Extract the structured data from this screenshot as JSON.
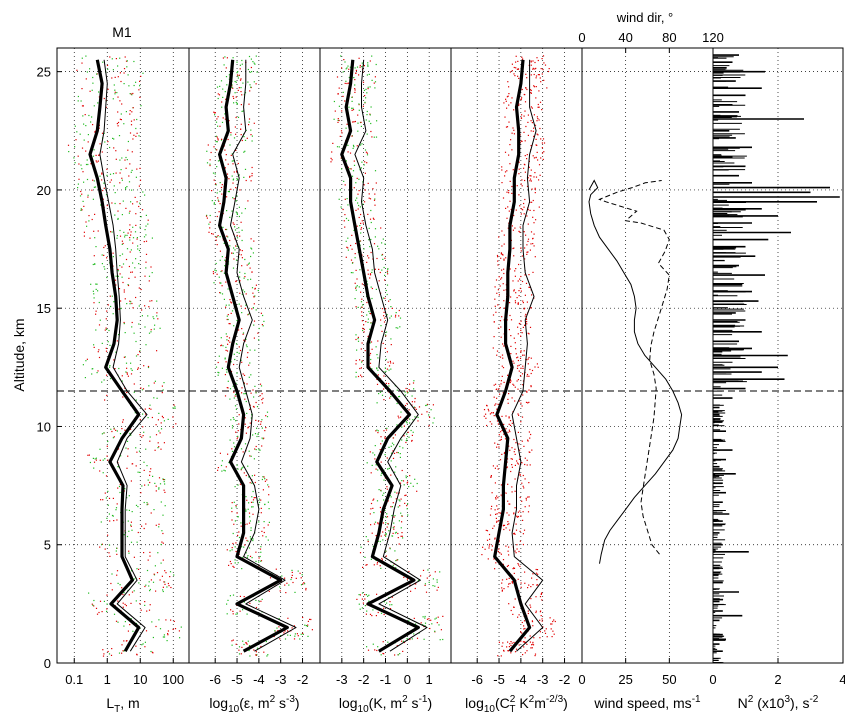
{
  "figure": {
    "title": "M1",
    "ylabel": "Altitude, km",
    "top_axis_label": "wind dir, °",
    "y_ticks": [
      0,
      5,
      10,
      15,
      20,
      25
    ],
    "tropopause_km": 11.5
  },
  "chart_data": [
    {
      "type": "line",
      "panel": "LT",
      "xlabel_parts": [
        "L",
        "T",
        ", m"
      ],
      "xscale": "log",
      "xlim": [
        0.03,
        300
      ],
      "xticks": [
        0.1,
        1,
        10,
        100
      ],
      "xticklabels": [
        "0.1",
        "1",
        "10",
        "100"
      ],
      "y": [
        0.5,
        1.5,
        2.5,
        3.5,
        4.5,
        5.5,
        6.5,
        7.5,
        8.5,
        9.5,
        10.5,
        11.5,
        12.5,
        13.5,
        14.5,
        15.5,
        16.5,
        17.5,
        18.5,
        19.5,
        20.5,
        21.5,
        22.5,
        23.5,
        24.5,
        25.5
      ],
      "series": [
        {
          "style": "thick",
          "values": [
            3.5,
            9,
            1.3,
            5.8,
            2.8,
            2.8,
            2.8,
            3.0,
            1.2,
            2.8,
            9,
            2.8,
            0.9,
            1.6,
            2.0,
            1.8,
            1.4,
            1.2,
            0.9,
            0.7,
            0.5,
            0.3,
            0.5,
            0.6,
            0.7,
            0.5
          ]
        },
        {
          "style": "thin",
          "values": [
            5,
            14,
            2,
            8,
            3.5,
            3.5,
            3.5,
            4,
            2,
            4,
            16,
            4,
            1.5,
            2.2,
            2.5,
            2.3,
            2.0,
            1.8,
            1.5,
            1.1,
            0.8,
            0.6,
            0.8,
            0.9,
            1.0,
            0.8
          ]
        }
      ]
    },
    {
      "type": "line",
      "panel": "epsilon",
      "xlabel_parts": [
        "log",
        "10",
        "(ε, m",
        "2",
        " s",
        "-3",
        ")"
      ],
      "xlim": [
        -7.2,
        -1.2
      ],
      "xticks": [
        -6,
        -5,
        -4,
        -3,
        -2
      ],
      "y": [
        0.5,
        1.5,
        2.5,
        3.5,
        4.5,
        5.5,
        6.5,
        7.5,
        8.5,
        9.5,
        10.5,
        11.5,
        12.5,
        13.5,
        14.5,
        15.5,
        16.5,
        17.5,
        18.5,
        19.5,
        20.5,
        21.5,
        22.5,
        23.5,
        24.5,
        25.5
      ],
      "series": [
        {
          "style": "thick",
          "values": [
            -4.7,
            -2.7,
            -5.0,
            -3.0,
            -5.0,
            -4.7,
            -4.7,
            -4.7,
            -5.3,
            -4.8,
            -4.7,
            -5.0,
            -5.4,
            -5.2,
            -4.9,
            -5.2,
            -5.5,
            -5.4,
            -5.8,
            -5.6,
            -5.5,
            -5.8,
            -5.4,
            -5.5,
            -5.3,
            -5.2
          ]
        },
        {
          "style": "thin",
          "values": [
            -4.2,
            -2.3,
            -4.6,
            -2.8,
            -4.7,
            -4.2,
            -4.0,
            -4.2,
            -4.8,
            -4.4,
            -4.3,
            -4.6,
            -4.9,
            -4.7,
            -4.3,
            -4.7,
            -5.0,
            -4.9,
            -5.3,
            -5.1,
            -4.9,
            -5.2,
            -4.6,
            -4.7,
            -4.6,
            -4.6
          ]
        }
      ]
    },
    {
      "type": "line",
      "panel": "K",
      "xlabel_parts": [
        "log",
        "10",
        "(K, m",
        "2",
        " s",
        "-1",
        ")"
      ],
      "xlim": [
        -4.0,
        2.0
      ],
      "xticks": [
        -3,
        -2,
        -1,
        0,
        1
      ],
      "y": [
        0.5,
        1.5,
        2.5,
        3.5,
        4.5,
        5.5,
        6.5,
        7.5,
        8.5,
        9.5,
        10.5,
        11.5,
        12.5,
        13.5,
        14.5,
        15.5,
        16.5,
        17.5,
        18.5,
        19.5,
        20.5,
        21.5,
        22.5,
        23.5,
        24.5,
        25.5
      ],
      "series": [
        {
          "style": "thick",
          "values": [
            -1.3,
            0.5,
            -1.8,
            0.3,
            -1.6,
            -1.3,
            -1.1,
            -0.7,
            -1.4,
            -0.9,
            0.1,
            -0.8,
            -1.8,
            -1.8,
            -1.5,
            -1.8,
            -2.0,
            -2.2,
            -2.4,
            -2.6,
            -2.6,
            -3.0,
            -2.6,
            -2.8,
            -2.6,
            -2.5
          ]
        },
        {
          "style": "thin",
          "values": [
            -0.8,
            0.9,
            -1.3,
            0.6,
            -1.1,
            -0.8,
            -0.6,
            -0.3,
            -0.9,
            -0.3,
            0.5,
            -0.3,
            -1.3,
            -1.2,
            -0.9,
            -1.2,
            -1.5,
            -1.6,
            -1.9,
            -2.1,
            -2.0,
            -2.4,
            -1.9,
            -2.1,
            -2.1,
            -2.0
          ]
        }
      ]
    },
    {
      "type": "line",
      "panel": "CT2",
      "xlabel_parts": [
        "log",
        "10",
        "(C",
        "2",
        "T",
        " K",
        "2",
        "m",
        "-2/3",
        ")"
      ],
      "xlim": [
        -7.2,
        -1.2
      ],
      "xticks": [
        -6,
        -5,
        -4,
        -3,
        -2
      ],
      "y": [
        0.5,
        1.5,
        2.5,
        3.5,
        4.5,
        5.5,
        6.5,
        7.5,
        8.5,
        9.5,
        10.5,
        11.5,
        12.5,
        13.5,
        14.5,
        15.5,
        16.5,
        17.5,
        18.5,
        19.5,
        20.5,
        21.5,
        22.5,
        23.5,
        24.5,
        25.5
      ],
      "series": [
        {
          "style": "thick",
          "values": [
            -4.5,
            -3.6,
            -4.0,
            -4.3,
            -5.2,
            -5.0,
            -4.8,
            -4.8,
            -4.7,
            -4.6,
            -5.1,
            -4.7,
            -4.4,
            -4.7,
            -4.7,
            -4.6,
            -4.6,
            -4.5,
            -4.5,
            -4.3,
            -4.3,
            -4.1,
            -4.1,
            -4.2,
            -4.0,
            -3.9
          ]
        },
        {
          "style": "thin",
          "values": [
            -4.2,
            -3.0,
            -3.8,
            -3.0,
            -4.3,
            -4.4,
            -4.2,
            -4.2,
            -4.0,
            -4.2,
            -4.4,
            -3.9,
            -3.8,
            -3.7,
            -3.8,
            -3.4,
            -3.8,
            -3.9,
            -3.9,
            -3.6,
            -3.7,
            -3.6,
            -3.3,
            -3.6,
            -3.6,
            -3.6
          ]
        }
      ]
    },
    {
      "type": "line",
      "panel": "wind",
      "xlabel_parts": [
        "wind speed, ms",
        "-1"
      ],
      "xlim": [
        0,
        75
      ],
      "xticks": [
        0,
        25,
        50
      ],
      "top_xlim": [
        0,
        120
      ],
      "top_xticks": [
        0,
        40,
        80,
        120
      ],
      "series": [
        {
          "name": "wind speed",
          "style": "solid",
          "points": [
            [
              10,
              4.2
            ],
            [
              11,
              4.6
            ],
            [
              13,
              5.2
            ],
            [
              16,
              5.6
            ],
            [
              20,
              6.0
            ],
            [
              25,
              6.5
            ],
            [
              30,
              7.0
            ],
            [
              36,
              7.5
            ],
            [
              42,
              8.0
            ],
            [
              47,
              8.5
            ],
            [
              52,
              9.0
            ],
            [
              55,
              9.5
            ],
            [
              56,
              10.0
            ],
            [
              57,
              10.5
            ],
            [
              55,
              11.0
            ],
            [
              52,
              11.5
            ],
            [
              48,
              12.0
            ],
            [
              42,
              12.5
            ],
            [
              36,
              13.0
            ],
            [
              32,
              13.5
            ],
            [
              30,
              14.0
            ],
            [
              30,
              14.5
            ],
            [
              31,
              15.0
            ],
            [
              30,
              15.5
            ],
            [
              28,
              16.0
            ],
            [
              24,
              16.5
            ],
            [
              20,
              17.0
            ],
            [
              15,
              17.5
            ],
            [
              10,
              18.0
            ],
            [
              7,
              18.5
            ],
            [
              5,
              19.0
            ],
            [
              4,
              19.5
            ],
            [
              5,
              19.8
            ],
            [
              9,
              20.1
            ],
            [
              7,
              20.4
            ],
            [
              4,
              20.0
            ]
          ]
        },
        {
          "name": "wind dir",
          "style": "dashed",
          "axis": "top",
          "points": [
            [
              71,
              4.6
            ],
            [
              64,
              5.0
            ],
            [
              60,
              5.6
            ],
            [
              56,
              6.2
            ],
            [
              54,
              6.8
            ],
            [
              56,
              7.4
            ],
            [
              58,
              8.0
            ],
            [
              60,
              8.6
            ],
            [
              62,
              9.2
            ],
            [
              64,
              9.8
            ],
            [
              66,
              10.4
            ],
            [
              67,
              11.0
            ],
            [
              68,
              11.6
            ],
            [
              66,
              12.2
            ],
            [
              62,
              12.8
            ],
            [
              63,
              13.4
            ],
            [
              66,
              14.0
            ],
            [
              70,
              14.6
            ],
            [
              74,
              15.2
            ],
            [
              78,
              15.8
            ],
            [
              80,
              16.4
            ],
            [
              70,
              16.9
            ],
            [
              76,
              17.4
            ],
            [
              80,
              17.9
            ],
            [
              75,
              18.3
            ],
            [
              54,
              18.6
            ],
            [
              40,
              18.7
            ],
            [
              50,
              19.1
            ],
            [
              36,
              19.3
            ],
            [
              22,
              19.5
            ],
            [
              16,
              19.6
            ],
            [
              32,
              19.9
            ],
            [
              46,
              20.1
            ],
            [
              58,
              20.3
            ],
            [
              73,
              20.4
            ]
          ]
        }
      ]
    },
    {
      "type": "line",
      "panel": "N2",
      "xlabel_parts": [
        "N",
        "2",
        " (x10",
        "3",
        "), s",
        "-2"
      ],
      "xlim": [
        0,
        4
      ],
      "xticks": [
        0,
        2,
        4
      ],
      "spikes": [
        [
          0.3,
          0.5
        ],
        [
          0.2,
          0.8
        ],
        [
          0.4,
          1.0
        ],
        [
          0.3,
          1.2
        ],
        [
          0.2,
          1.8
        ],
        [
          0.9,
          2.0
        ],
        [
          0.3,
          2.2
        ],
        [
          0.2,
          2.6
        ],
        [
          0.8,
          3.0
        ],
        [
          0.3,
          3.4
        ],
        [
          0.2,
          4.0
        ],
        [
          1.1,
          4.7
        ],
        [
          0.3,
          5.0
        ],
        [
          0.2,
          5.5
        ],
        [
          0.3,
          6.0
        ],
        [
          0.5,
          6.3
        ],
        [
          0.3,
          6.8
        ],
        [
          0.4,
          7.2
        ],
        [
          0.3,
          7.6
        ],
        [
          0.7,
          8.0
        ],
        [
          0.2,
          8.3
        ],
        [
          0.4,
          8.6
        ],
        [
          0.6,
          9.0
        ],
        [
          0.3,
          9.4
        ],
        [
          0.4,
          9.8
        ],
        [
          0.3,
          10.2
        ],
        [
          0.2,
          10.5
        ],
        [
          0.2,
          10.8
        ],
        [
          0.6,
          11.2
        ],
        [
          1.0,
          11.6
        ],
        [
          2.2,
          12.0
        ],
        [
          1.5,
          12.3
        ],
        [
          2.0,
          12.5
        ],
        [
          2.3,
          13.0
        ],
        [
          1.2,
          13.3
        ],
        [
          0.8,
          13.6
        ],
        [
          1.5,
          14.0
        ],
        [
          1.0,
          14.5
        ],
        [
          0.7,
          14.8
        ],
        [
          1.4,
          15.3
        ],
        [
          1.2,
          15.7
        ],
        [
          0.9,
          16.0
        ],
        [
          1.6,
          16.4
        ],
        [
          0.8,
          16.8
        ],
        [
          1.3,
          17.2
        ],
        [
          1.0,
          17.6
        ],
        [
          1.7,
          17.9
        ],
        [
          2.4,
          18.2
        ],
        [
          1.2,
          18.6
        ],
        [
          2.0,
          18.9
        ],
        [
          1.5,
          19.2
        ],
        [
          3.2,
          19.5
        ],
        [
          3.9,
          19.7
        ],
        [
          3.0,
          19.9
        ],
        [
          3.6,
          20.1
        ],
        [
          1.2,
          20.3
        ],
        [
          0.8,
          20.6
        ],
        [
          1.0,
          21.0
        ],
        [
          0.6,
          21.4
        ],
        [
          1.2,
          21.8
        ],
        [
          0.7,
          22.2
        ],
        [
          0.5,
          22.5
        ],
        [
          2.8,
          23.0
        ],
        [
          0.8,
          23.3
        ],
        [
          0.6,
          23.6
        ],
        [
          1.0,
          24.0
        ],
        [
          1.5,
          24.3
        ],
        [
          0.7,
          24.6
        ],
        [
          1.6,
          25.0
        ],
        [
          0.6,
          25.4
        ],
        [
          0.8,
          25.7
        ]
      ]
    }
  ]
}
